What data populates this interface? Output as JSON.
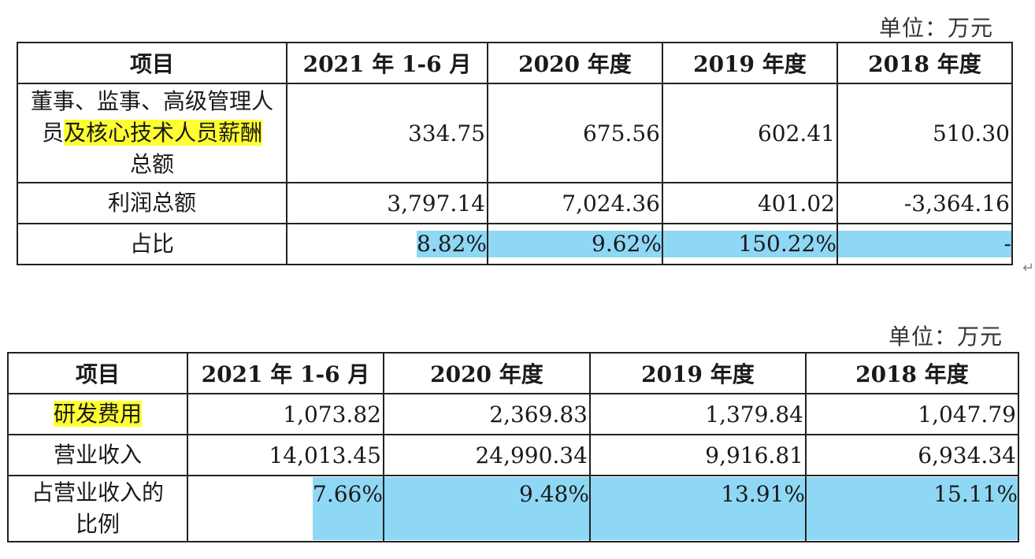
{
  "table1": {
    "unit": "单位：万元",
    "headers": [
      "项目",
      "2021 年 1-6 月",
      "2020 年度",
      "2019 年度",
      "2018 年度"
    ],
    "row1_label_a": "董事、监事、高级管理人",
    "row1_label_b_plain": "员",
    "row1_label_b_hl": "及核心技术人员薪酬",
    "row1_label_c": "总额",
    "row1_values": [
      "334.75",
      "675.56",
      "602.41",
      "510.30"
    ],
    "row2_label": "利润总额",
    "row2_values": [
      "3,797.14",
      "7,024.36",
      "401.02",
      "-3,364.16"
    ],
    "row3_label": "占比",
    "row3_values": [
      "8.82%",
      "9.62%",
      "150.22%",
      "-"
    ]
  },
  "table2": {
    "unit": "单位：万元",
    "headers": [
      "项目",
      "2021 年 1-6 月",
      "2020 年度",
      "2019 年度",
      "2018 年度"
    ],
    "row1_label": "研发费用",
    "row1_values": [
      "1,073.82",
      "2,369.83",
      "1,379.84",
      "1,047.79"
    ],
    "row2_label": "营业收入",
    "row2_values": [
      "14,013.45",
      "24,990.34",
      "9,916.81",
      "6,934.34"
    ],
    "row3_label_a": "占营业收入的",
    "row3_label_b": "比例",
    "row3_values": [
      "7.66%",
      "9.48%",
      "13.91%",
      "15.11%"
    ]
  },
  "colors": {
    "highlight_yellow": "#ffff33",
    "highlight_blue": "#8fd8f5"
  }
}
